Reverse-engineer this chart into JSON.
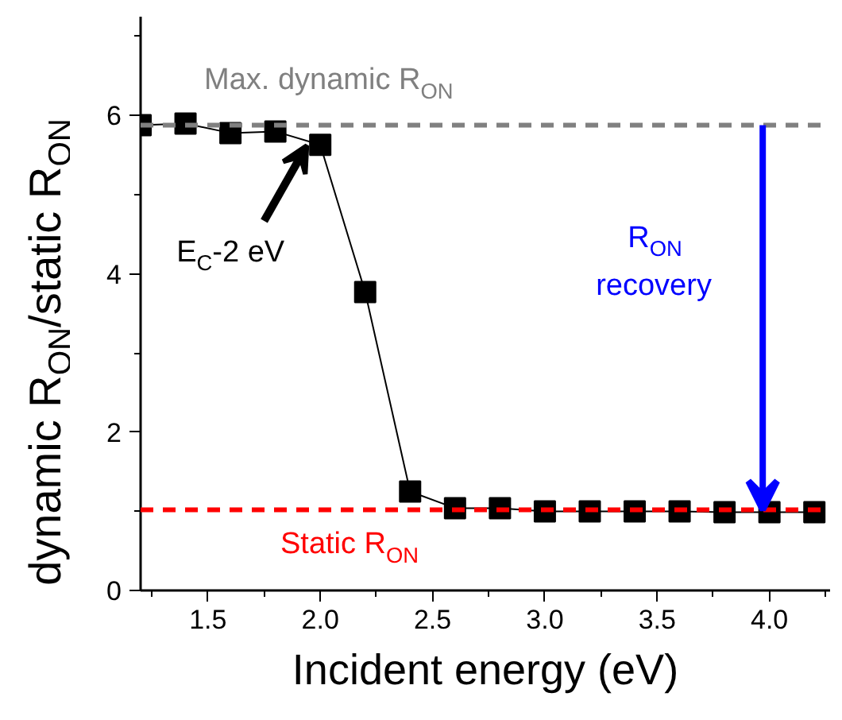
{
  "chart_data": {
    "type": "line",
    "xlabel": "Incident energy (eV)",
    "ylabel": "dynamic R$_{ON}$/static R$_{ON}$",
    "x": [
      1.2,
      1.4,
      1.6,
      1.8,
      2.0,
      2.2,
      2.4,
      2.6,
      2.8,
      3.0,
      3.2,
      3.4,
      3.6,
      3.8,
      4.0,
      4.2
    ],
    "series": [
      {
        "color": "#000000",
        "values": [
          5.88,
          5.9,
          5.78,
          5.8,
          5.63,
          3.77,
          1.25,
          1.04,
          1.04,
          1.0,
          1.0,
          1.0,
          1.0,
          0.99,
          0.99,
          0.99
        ]
      }
    ],
    "marker": "square",
    "line_style": "solid",
    "grid": false,
    "xlim": [
      1.2,
      4.27
    ],
    "ylim": [
      0,
      7.25
    ],
    "xticks": [
      {
        "value": 1.5,
        "label": "1.5"
      },
      {
        "value": 2.0,
        "label": "2.0"
      },
      {
        "value": 2.5,
        "label": "2.5"
      },
      {
        "value": 3.0,
        "label": "3.0"
      },
      {
        "value": 3.5,
        "label": "3.5"
      },
      {
        "value": 4.0,
        "label": "4.0"
      }
    ],
    "yticks": [
      0,
      2,
      4,
      6
    ],
    "ref_lines": [
      {
        "axis": "y",
        "value": 5.88,
        "label": "Max. dynamic R$_{ON}$",
        "color": "#808080",
        "line_style": "dashed"
      },
      {
        "axis": "y",
        "value": 1.02,
        "label": "Static R$_{ON}$",
        "color": "#ff0000",
        "line_style": "dashed"
      }
    ],
    "annotations": [
      {
        "text": "E$_{C}$-2 eV",
        "x": 1.94,
        "y": 5.62
      },
      "R$_{ON}$ recovery"
    ]
  }
}
